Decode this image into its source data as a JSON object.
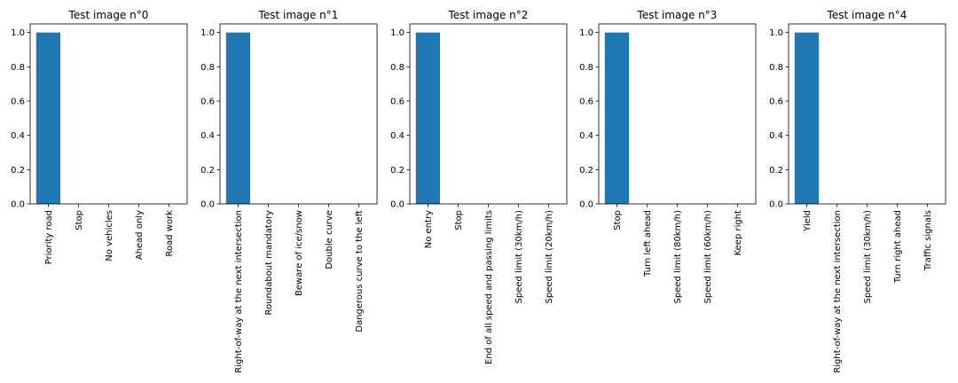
{
  "chart_data": [
    {
      "type": "bar",
      "title": "Test image n°0",
      "categories": [
        "Priority road",
        "Stop",
        "No vehicles",
        "Ahead only",
        "Road work"
      ],
      "values": [
        1.0,
        0.0,
        0.0,
        0.0,
        0.0
      ],
      "ylim": [
        0,
        1.05
      ],
      "yticks": [
        "0.0",
        "0.2",
        "0.4",
        "0.6",
        "0.8",
        "1.0"
      ],
      "bar_color": "#1f77b4",
      "grid": false
    },
    {
      "type": "bar",
      "title": "Test image n°1",
      "categories": [
        "Right-of-way at the next intersection",
        "Roundabout mandatory",
        "Beware of ice/snow",
        "Double curve",
        "Dangerous curve to the left"
      ],
      "values": [
        1.0,
        0.0,
        0.0,
        0.0,
        0.0
      ],
      "ylim": [
        0,
        1.05
      ],
      "yticks": [
        "0.0",
        "0.2",
        "0.4",
        "0.6",
        "0.8",
        "1.0"
      ],
      "bar_color": "#1f77b4",
      "grid": false
    },
    {
      "type": "bar",
      "title": "Test image n°2",
      "categories": [
        "No entry",
        "Stop",
        "End of all speed and passing limits",
        "Speed limit (30km/h)",
        "Speed limit (20km/h)"
      ],
      "values": [
        1.0,
        0.0,
        0.0,
        0.0,
        0.0
      ],
      "ylim": [
        0,
        1.05
      ],
      "yticks": [
        "0.0",
        "0.2",
        "0.4",
        "0.6",
        "0.8",
        "1.0"
      ],
      "bar_color": "#1f77b4",
      "grid": false
    },
    {
      "type": "bar",
      "title": "Test image n°3",
      "categories": [
        "Stop",
        "Turn left ahead",
        "Speed limit (80km/h)",
        "Speed limit (60km/h)",
        "Keep right"
      ],
      "values": [
        1.0,
        0.0,
        0.0,
        0.0,
        0.0
      ],
      "ylim": [
        0,
        1.05
      ],
      "yticks": [
        "0.0",
        "0.2",
        "0.4",
        "0.6",
        "0.8",
        "1.0"
      ],
      "bar_color": "#1f77b4",
      "grid": false
    },
    {
      "type": "bar",
      "title": "Test image n°4",
      "categories": [
        "Yield",
        "Right-of-way at the next intersection",
        "Speed limit (30km/h)",
        "Turn right ahead",
        "Traffic signals"
      ],
      "values": [
        1.0,
        0.0,
        0.0,
        0.0,
        0.0
      ],
      "ylim": [
        0,
        1.05
      ],
      "yticks": [
        "0.0",
        "0.2",
        "0.4",
        "0.6",
        "0.8",
        "1.0"
      ],
      "bar_color": "#1f77b4",
      "grid": false
    }
  ]
}
